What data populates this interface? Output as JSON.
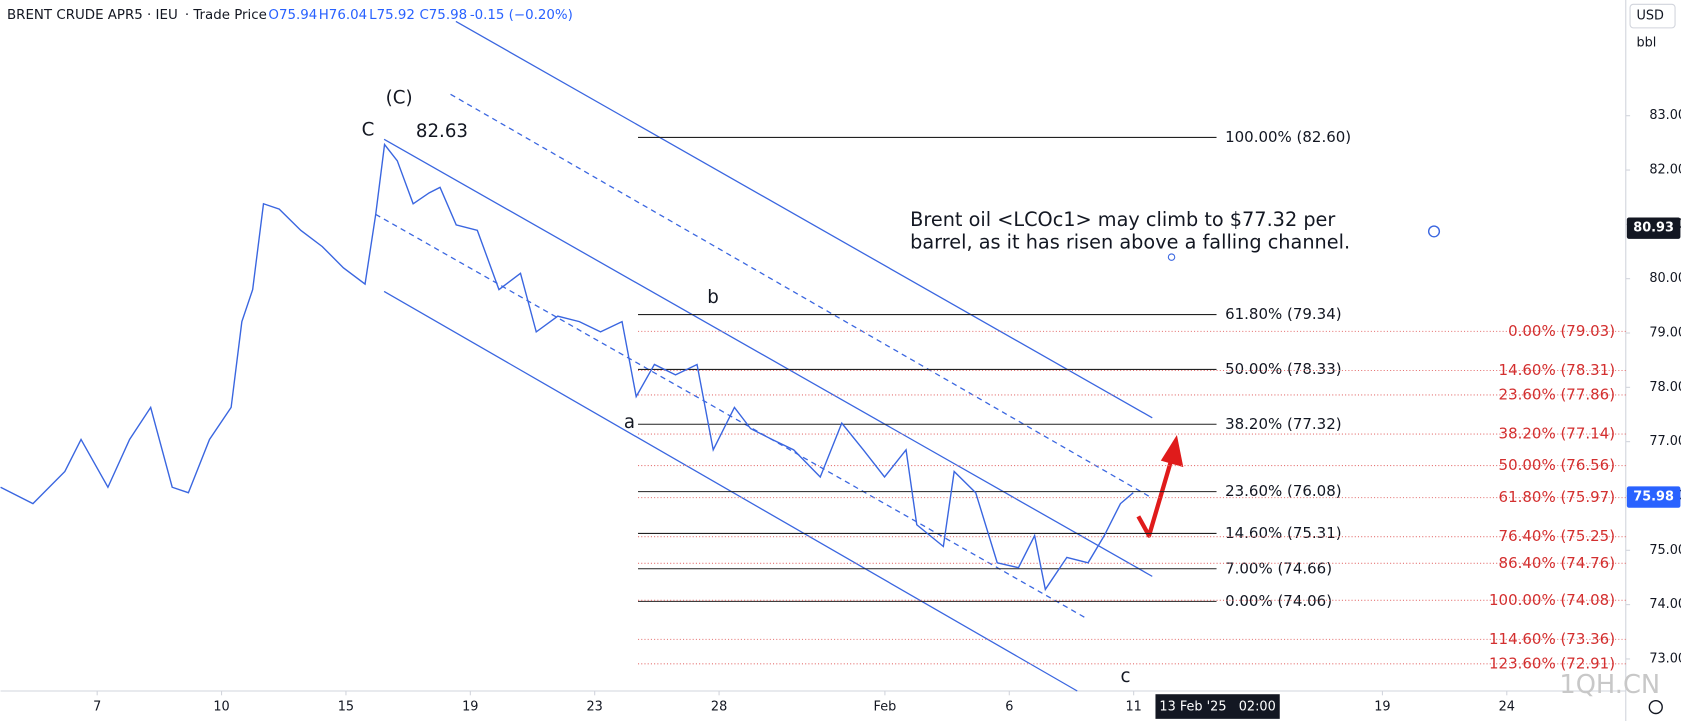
{
  "chart_data": {
    "type": "line",
    "header": {
      "symbol": "BRENT CRUDE APR5 · IEU",
      "source": "· Trade Price",
      "open": "O75.94",
      "high": "H76.04",
      "low": "L75.92",
      "close": "C75.98",
      "change": "-0.15 (−0.20%)"
    },
    "currency": "USD",
    "unit": "bbl",
    "color": "#3a66e0",
    "x": [
      -2.33,
      -1.55,
      -0.78,
      -0.39,
      0.26,
      0.78,
      1.29,
      1.81,
      2.2,
      2.71,
      3.23,
      3.49,
      3.75,
      4.01,
      4.39,
      4.91,
      5.43,
      5.94,
      6.46,
      6.72,
      6.93,
      7.24,
      7.62,
      8.01,
      8.27,
      8.66,
      9.17,
      9.69,
      10.21,
      10.59,
      11.11,
      11.63,
      12.14,
      12.66,
      13.0,
      13.44,
      13.95,
      14.47,
      14.86,
      15.37,
      15.76,
      16.28,
      16.8,
      17.44,
      17.96,
      18.48,
      18.99,
      19.51,
      19.77,
      20.41,
      20.67,
      21.19,
      21.71,
      22.22,
      22.61,
      22.87,
      23.39,
      23.9,
      24.29,
      24.68,
      24.99
    ],
    "values": [
      76.16,
      75.86,
      76.45,
      77.04,
      76.16,
      77.04,
      77.63,
      76.16,
      76.06,
      77.04,
      77.63,
      79.21,
      79.8,
      81.38,
      81.28,
      80.89,
      80.59,
      80.2,
      79.9,
      81.19,
      82.47,
      82.17,
      81.38,
      81.58,
      81.68,
      80.99,
      80.89,
      79.8,
      80.1,
      79.02,
      79.31,
      79.21,
      79.02,
      79.21,
      77.83,
      78.42,
      78.23,
      78.42,
      76.85,
      77.63,
      77.24,
      77.04,
      76.85,
      76.35,
      77.34,
      76.85,
      76.35,
      76.85,
      75.47,
      75.07,
      76.45,
      76.06,
      74.77,
      74.68,
      75.27,
      74.28,
      74.87,
      74.77,
      75.27,
      75.86,
      76.06
    ],
    "xlim": [
      -2.33,
      36.87
    ],
    "ylim": [
      72.41,
      85.13
    ],
    "xticks": [
      {
        "value": 0,
        "label": "7"
      },
      {
        "value": 3,
        "label": "10"
      },
      {
        "value": 6,
        "label": "15"
      },
      {
        "value": 9,
        "label": "19"
      },
      {
        "value": 12,
        "label": "23"
      },
      {
        "value": 15,
        "label": "28"
      },
      {
        "value": 19,
        "label": "Feb"
      },
      {
        "value": 22,
        "label": "6"
      },
      {
        "value": 25,
        "label": "11"
      },
      {
        "value": 31,
        "label": "19"
      },
      {
        "value": 34,
        "label": "24"
      }
    ],
    "yticks": [
      {
        "value": 73,
        "label": "73.00"
      },
      {
        "value": 74,
        "label": "74.00"
      },
      {
        "value": 75,
        "label": "75.00"
      },
      {
        "value": 76,
        "label": "76.00"
      },
      {
        "value": 77,
        "label": "77.00"
      },
      {
        "value": 78,
        "label": "78.00"
      },
      {
        "value": 79,
        "label": "79.00"
      },
      {
        "value": 80,
        "label": "80.00"
      },
      {
        "value": 81,
        "label": "81.00"
      },
      {
        "value": 82,
        "label": "82.00"
      },
      {
        "value": 83,
        "label": "83.00"
      }
    ],
    "fib_retracement": [
      {
        "value": 82.6,
        "label": "100.00% (82.60)"
      },
      {
        "value": 79.34,
        "label": "61.80% (79.34)"
      },
      {
        "value": 78.33,
        "label": "50.00% (78.33)"
      },
      {
        "value": 77.32,
        "label": "38.20% (77.32)"
      },
      {
        "value": 76.08,
        "label": "23.60% (76.08)"
      },
      {
        "value": 75.31,
        "label": "14.60% (75.31)"
      },
      {
        "value": 74.66,
        "label": "7.00% (74.66)"
      },
      {
        "value": 74.06,
        "label": "0.00% (74.06)"
      }
    ],
    "fib_extension": [
      {
        "value": 79.03,
        "label": "0.00% (79.03)"
      },
      {
        "value": 78.31,
        "label": "14.60% (78.31)"
      },
      {
        "value": 77.86,
        "label": "23.60% (77.86)"
      },
      {
        "value": 77.14,
        "label": "38.20% (77.14)"
      },
      {
        "value": 76.56,
        "label": "50.00% (76.56)"
      },
      {
        "value": 75.97,
        "label": "61.80% (75.97)"
      },
      {
        "value": 75.25,
        "label": "76.40% (75.25)"
      },
      {
        "value": 74.76,
        "label": "86.40% (74.76)"
      },
      {
        "value": 74.08,
        "label": "100.00% (74.08)"
      },
      {
        "value": 73.36,
        "label": "114.60% (73.36)"
      },
      {
        "value": 72.91,
        "label": "123.60% (72.91)"
      }
    ],
    "last_price": 75.98,
    "crosshair_price": 80.93,
    "crosshair_time": "13 Feb '25   02:00",
    "wave_labels": [
      "(C)",
      "C",
      "82.63",
      "b",
      "a",
      "c"
    ],
    "annotation": [
      "Brent oil <LCOc1> may climb to $77.32 per",
      "barrel, as it has risen above a falling channel."
    ],
    "watermark": "1QH.CN"
  }
}
